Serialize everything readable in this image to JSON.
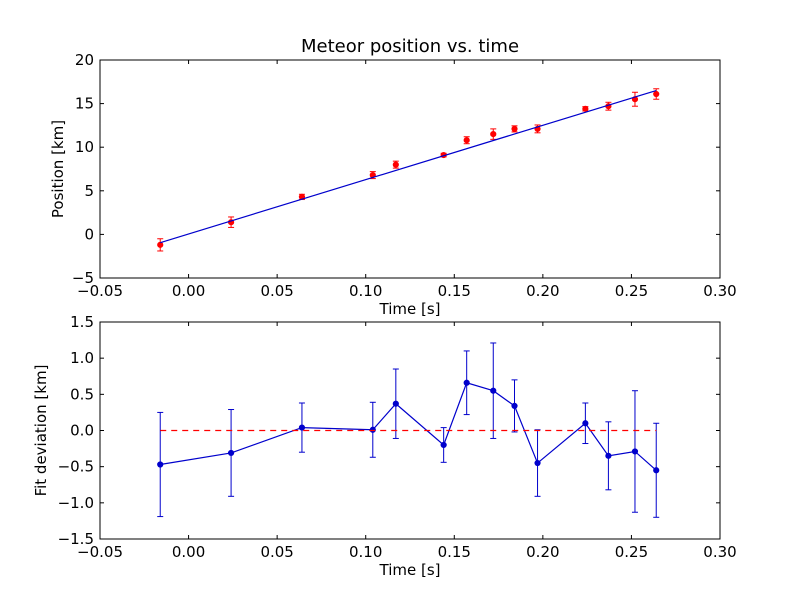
{
  "chart_data": [
    {
      "type": "scatter",
      "title": "Meteor position vs. time",
      "xlabel": "Time [s]",
      "ylabel": "Position [km]",
      "xlim": [
        -0.05,
        0.3
      ],
      "ylim": [
        -5,
        20
      ],
      "xticks": [
        "−0.05",
        "0.00",
        "0.05",
        "0.10",
        "0.15",
        "0.20",
        "0.25",
        "0.30"
      ],
      "yticks": [
        "−5",
        "0",
        "5",
        "10",
        "15",
        "20"
      ],
      "grid": false,
      "colors": {
        "points": "#ff0000",
        "errorbars": "#ff0000",
        "fit": "#0000cc"
      },
      "series": [
        {
          "style": "points-with-errorbars",
          "x": [
            -0.016,
            0.024,
            0.064,
            0.104,
            0.117,
            0.144,
            0.157,
            0.172,
            0.184,
            0.197,
            0.224,
            0.237,
            0.252,
            0.264
          ],
          "y": [
            -1.2,
            1.4,
            4.3,
            6.8,
            8.0,
            9.1,
            10.8,
            11.5,
            12.1,
            12.1,
            14.4,
            14.7,
            15.5,
            16.1
          ],
          "yerr": [
            0.7,
            0.6,
            0.3,
            0.4,
            0.4,
            0.2,
            0.4,
            0.6,
            0.35,
            0.45,
            0.25,
            0.45,
            0.8,
            0.6
          ]
        },
        {
          "style": "line",
          "x": [
            -0.016,
            0.264
          ],
          "y": [
            -0.95,
            16.5
          ]
        }
      ]
    },
    {
      "type": "line",
      "xlabel": "Time [s]",
      "ylabel": "Fit deviation [km]",
      "xlim": [
        -0.05,
        0.3
      ],
      "ylim": [
        -1.5,
        1.5
      ],
      "xticks": [
        "−0.05",
        "0.00",
        "0.05",
        "0.10",
        "0.15",
        "0.20",
        "0.25",
        "0.30"
      ],
      "yticks": [
        "−1.5",
        "−1.0",
        "−0.5",
        "0.0",
        "0.5",
        "1.0",
        "1.5"
      ],
      "grid": false,
      "colors": {
        "deviation": "#0000cc",
        "zero_line": "#ff0000"
      },
      "series": [
        {
          "style": "line-points-errorbars",
          "x": [
            -0.016,
            0.024,
            0.064,
            0.104,
            0.117,
            0.144,
            0.157,
            0.172,
            0.184,
            0.197,
            0.224,
            0.237,
            0.252,
            0.264
          ],
          "y": [
            -0.47,
            -0.31,
            0.04,
            0.01,
            0.37,
            -0.2,
            0.66,
            0.55,
            0.34,
            -0.45,
            0.1,
            -0.35,
            -0.29,
            -0.55
          ],
          "yerr": [
            0.72,
            0.6,
            0.34,
            0.38,
            0.48,
            0.24,
            0.44,
            0.66,
            0.36,
            0.46,
            0.28,
            0.47,
            0.84,
            0.65
          ]
        },
        {
          "style": "dashed-line",
          "x": [
            -0.016,
            0.264
          ],
          "y": [
            0,
            0
          ]
        }
      ]
    }
  ]
}
